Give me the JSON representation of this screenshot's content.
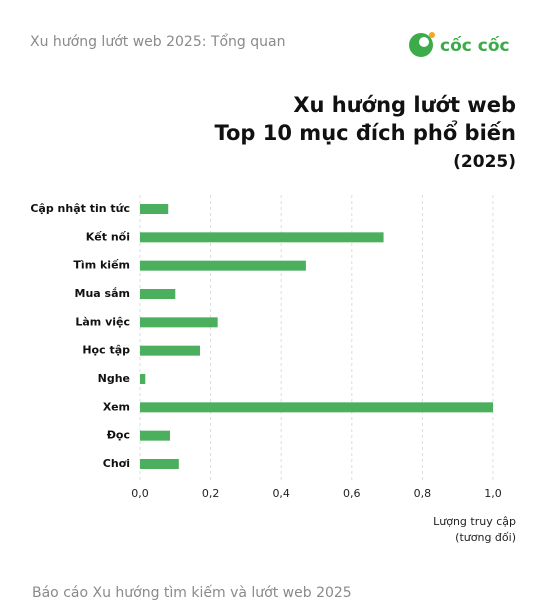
{
  "header": {
    "title": "Xu hướng lướt web 2025: Tổng quan",
    "brand": "cốc cốc"
  },
  "chart_data": {
    "type": "bar",
    "orientation": "horizontal",
    "title": [
      "Xu hướng lướt web",
      "Top 10 mục đích phổ biến",
      "(2025)"
    ],
    "categories": [
      "Cập nhật tin tức",
      "Kết nối",
      "Tìm kiếm",
      "Mua sắm",
      "Làm việc",
      "Học tập",
      "Nghe",
      "Xem",
      "Đọc",
      "Chơi"
    ],
    "values": [
      0.08,
      0.69,
      0.47,
      0.1,
      0.22,
      0.17,
      0.015,
      1.0,
      0.085,
      0.11
    ],
    "color": "#4caf5e",
    "xlim": [
      0,
      1.0
    ],
    "xticks": [
      {
        "value": 0,
        "label": "0,0"
      },
      {
        "value": 0.2,
        "label": "0,2"
      },
      {
        "value": 0.4,
        "label": "0,4"
      },
      {
        "value": 0.6,
        "label": "0,6"
      },
      {
        "value": 0.8,
        "label": "0,8"
      },
      {
        "value": 1.0,
        "label": "1,0"
      }
    ],
    "xlabel": [
      "Lượng truy cập",
      "(tương đối)"
    ],
    "grid": true
  },
  "footer": {
    "text": "Báo cáo Xu hướng tìm kiếm và lướt web 2025"
  }
}
